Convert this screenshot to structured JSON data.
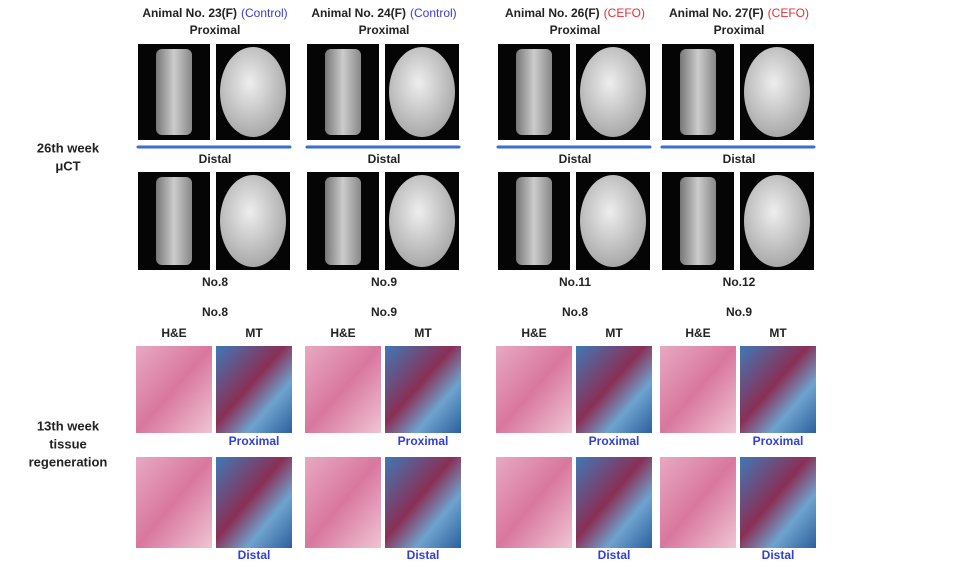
{
  "row_labels": {
    "micro_ct": [
      "26th week",
      "μCT"
    ],
    "histology": [
      "13th week",
      "tissue",
      "regeneration"
    ]
  },
  "columns": [
    {
      "animal": "Animal No. 23(F)",
      "group": "(Control)",
      "group_color": "#3a3ad0",
      "ct_proximal_label": "Proximal",
      "ct_distal_label": "Distal",
      "ct_number": "No.8",
      "histo_number": "No.8",
      "stains": [
        "H&E",
        "MT"
      ],
      "histo_proximal_label": "Proximal",
      "histo_distal_label": "Distal"
    },
    {
      "animal": "Animal No. 24(F)",
      "group": "(Control)",
      "group_color": "#3a3ad0",
      "ct_proximal_label": "Proximal",
      "ct_distal_label": "Distal",
      "ct_number": "No.9",
      "histo_number": "No.9",
      "stains": [
        "H&E",
        "MT"
      ],
      "histo_proximal_label": "Proximal",
      "histo_distal_label": "Distal"
    },
    {
      "animal": "Animal No. 26(F)",
      "group": "(CEFO)",
      "group_color": "#e0303a",
      "ct_proximal_label": "Proximal",
      "ct_distal_label": "Distal",
      "ct_number": "No.11",
      "histo_number": "No.8",
      "stains": [
        "H&E",
        "MT"
      ],
      "histo_proximal_label": "Proximal",
      "histo_distal_label": "Distal"
    },
    {
      "animal": "Animal No. 27(F)",
      "group": "(CEFO)",
      "group_color": "#e0303a",
      "ct_proximal_label": "Proximal",
      "ct_distal_label": "Distal",
      "ct_number": "No.12",
      "histo_number": "No.9",
      "stains": [
        "H&E",
        "MT"
      ],
      "histo_proximal_label": "Proximal",
      "histo_distal_label": "Distal"
    }
  ]
}
